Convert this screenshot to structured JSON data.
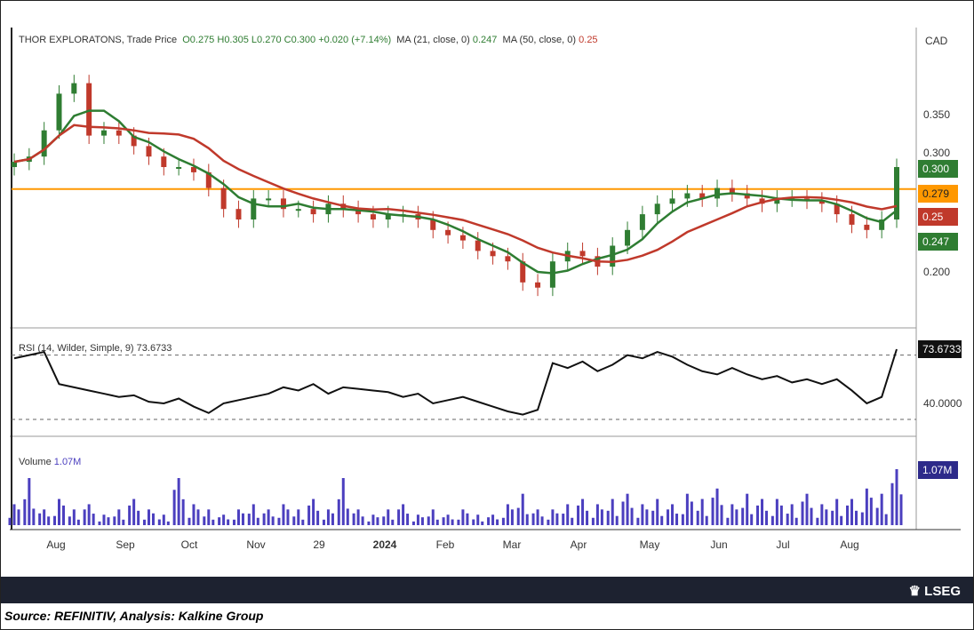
{
  "legend": {
    "title": "THOR EXPLORATONS, Trade Price",
    "o": "O0.275",
    "h": "H0.305",
    "l": "L0.270",
    "c": "C0.300",
    "chg": "+0.020 (+7.14%)",
    "ma21_label": "MA (21, close, 0)",
    "ma21_val": "0.247",
    "ma50_label": "MA (50, close, 0)",
    "ma50_val": "0.25"
  },
  "rsi_legend": {
    "label": "RSI (14, Wilder, Simple, 9)",
    "value": "73.6733"
  },
  "vol_legend": {
    "label": "Volume",
    "value": "1.07M"
  },
  "currency": "CAD",
  "tags": {
    "close": "0.300",
    "level": "0.279",
    "ma50": "0.25",
    "ma21": "0.247",
    "rsi": "73.6733",
    "vol": "1.07M"
  },
  "logo": "LSEG",
  "source": "Source: REFINITIV, Analysis: Kalkine Group",
  "colors": {
    "up": "#2f7d32",
    "down": "#c0392b",
    "ma21": "#2e7d32",
    "ma50": "#c0392b",
    "level": "#ff9800",
    "volume": "#4b3fbf"
  },
  "chart_data": {
    "type": "line",
    "title": "THOR EXPLORATONS, Trade Price",
    "price_axis": {
      "ticks": [
        "0.350",
        "0.300",
        "0.200"
      ],
      "range": [
        0.17,
        0.39
      ]
    },
    "rsi_axis": {
      "ticks": [
        "40.0000"
      ],
      "range": [
        25,
        80
      ],
      "bands": [
        70,
        30
      ]
    },
    "x_ticks": [
      "Aug",
      "Sep",
      "Oct",
      "Nov",
      "29",
      "2024",
      "Feb",
      "Mar",
      "Apr",
      "May",
      "Jun",
      "Jul",
      "Aug"
    ],
    "horizontal_level": 0.279,
    "close": [
      0.305,
      0.31,
      0.335,
      0.37,
      0.38,
      0.33,
      0.335,
      0.33,
      0.32,
      0.31,
      0.3,
      0.3,
      0.295,
      0.28,
      0.26,
      0.25,
      0.27,
      0.27,
      0.26,
      0.26,
      0.255,
      0.265,
      0.26,
      0.255,
      0.25,
      0.255,
      0.255,
      0.25,
      0.24,
      0.235,
      0.23,
      0.22,
      0.215,
      0.21,
      0.19,
      0.185,
      0.21,
      0.22,
      0.215,
      0.205,
      0.225,
      0.24,
      0.255,
      0.265,
      0.27,
      0.275,
      0.27,
      0.28,
      0.275,
      0.27,
      0.265,
      0.27,
      0.27,
      0.268,
      0.265,
      0.255,
      0.245,
      0.24,
      0.25,
      0.3
    ],
    "rsi": [
      68,
      70,
      72,
      52,
      50,
      48,
      46,
      44,
      45,
      41,
      40,
      43,
      38,
      34,
      40,
      42,
      44,
      46,
      50,
      48,
      52,
      46,
      50,
      49,
      48,
      47,
      44,
      46,
      40,
      42,
      44,
      41,
      38,
      35,
      33,
      36,
      65,
      62,
      66,
      60,
      64,
      70,
      68,
      72,
      69,
      64,
      60,
      58,
      62,
      58,
      55,
      57,
      53,
      55,
      52,
      55,
      48,
      40,
      44,
      73.67
    ],
    "volume": [
      0.4,
      0.9,
      0.3,
      0.5,
      0.3,
      0.4,
      0.2,
      0.3,
      0.5,
      0.3,
      0.2,
      0.9,
      0.4,
      0.3,
      0.2,
      0.3,
      0.4,
      0.3,
      0.4,
      0.3,
      0.5,
      0.3,
      0.9,
      0.3,
      0.2,
      0.3,
      0.4,
      0.2,
      0.3,
      0.2,
      0.3,
      0.2,
      0.2,
      0.4,
      0.6,
      0.3,
      0.3,
      0.4,
      0.5,
      0.4,
      0.5,
      0.6,
      0.4,
      0.5,
      0.4,
      0.6,
      0.5,
      0.7,
      0.4,
      0.6,
      0.5,
      0.5,
      0.4,
      0.6,
      0.4,
      0.5,
      0.5,
      0.7,
      0.6,
      1.07
    ]
  }
}
